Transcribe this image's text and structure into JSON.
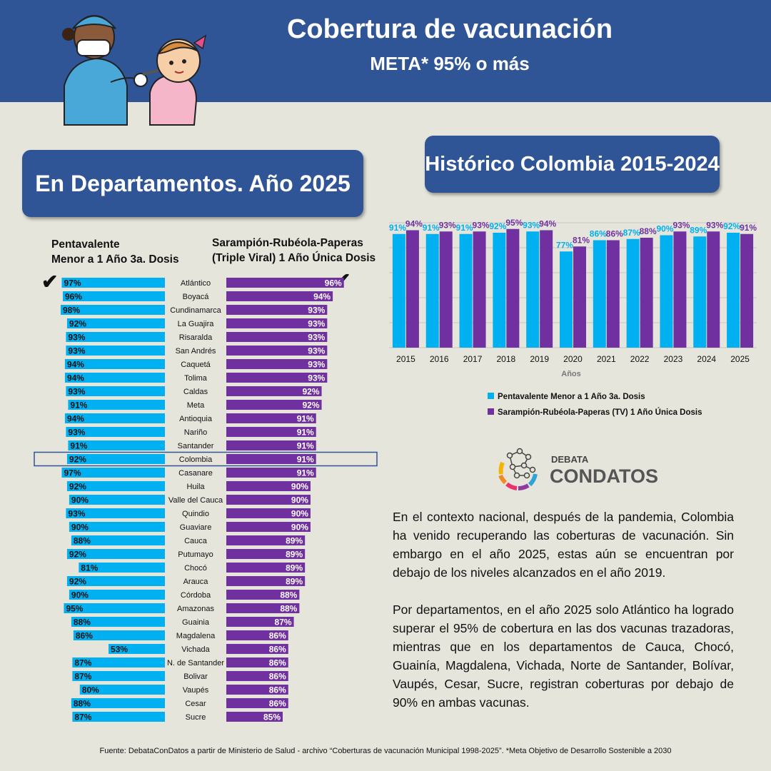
{
  "header": {
    "title": "Cobertura de vacunación",
    "subtitle": "META* 95% o más"
  },
  "left_panel": {
    "title": "En Departamentos. Año 2025",
    "col_penta": [
      "Pentavalente",
      "Menor a 1 Año 3a. Dosis"
    ],
    "col_triple": [
      "Sarampión-Rubéola-Paperas",
      "(Triple Viral) 1 Año Única Dosis"
    ],
    "check_mark": "✔",
    "highlight": "Colombia"
  },
  "right_panel": {
    "title": "Histórico Colombia 2015-2024"
  },
  "colors": {
    "penta": "#00b0f0",
    "triple": "#7030a0",
    "header": "#2f5597",
    "background": "#e5e5dc"
  },
  "chart_data": [
    {
      "type": "bar",
      "orientation": "horizontal-diverging",
      "categories": [
        "Atlántico",
        "Boyacá",
        "Cundinamarca",
        "La Guajira",
        "Risaralda",
        "San Andrés",
        "Caquetá",
        "Tolima",
        "Caldas",
        "Meta",
        "Antioquia",
        "Nariño",
        "Santander",
        "Colombia",
        "Casanare",
        "Huila",
        "Valle  del Cauca",
        "Quindio",
        "Guaviare",
        "Cauca",
        "Putumayo",
        "Chocó",
        "Arauca",
        "Córdoba",
        "Amazonas",
        "Guainia",
        "Magdalena",
        "Vichada",
        "N. de Santander",
        "Bolivar",
        "Vaupés",
        "Cesar",
        "Sucre"
      ],
      "series": [
        {
          "name": "Pentavalente Menor a 1 Año 3a. Dosis",
          "values": [
            97,
            96,
            98,
            92,
            93,
            93,
            94,
            94,
            93,
            91,
            94,
            93,
            91,
            92,
            97,
            92,
            90,
            93,
            90,
            88,
            92,
            81,
            92,
            90,
            95,
            88,
            86,
            53,
            87,
            87,
            80,
            88,
            87
          ]
        },
        {
          "name": "Sarampión-Rubéola-Paperas (Triple Viral) 1 Año Única Dosis",
          "values": [
            96,
            94,
            93,
            93,
            93,
            93,
            93,
            93,
            92,
            92,
            91,
            91,
            91,
            91,
            91,
            90,
            90,
            90,
            90,
            89,
            89,
            89,
            89,
            88,
            88,
            87,
            86,
            86,
            86,
            86,
            86,
            86,
            85
          ]
        }
      ],
      "value_suffix": "%"
    },
    {
      "type": "bar",
      "categories": [
        "2015",
        "2016",
        "2017",
        "2018",
        "2019",
        "2020",
        "2021",
        "2022",
        "2023",
        "2024",
        "2025"
      ],
      "series": [
        {
          "name": "Pentavalente Menor a 1 Año 3a. Dosis",
          "values": [
            91,
            91,
            91,
            92,
            93,
            77,
            86,
            87,
            90,
            89,
            92
          ]
        },
        {
          "name": "Sarampión-Rubéola-Paperas (TV) 1 Año Única Dosis",
          "values": [
            94,
            93,
            93,
            95,
            94,
            81,
            86,
            88,
            93,
            93,
            91
          ]
        }
      ],
      "xlabel": "Años",
      "ylabel": "",
      "ylim": [
        0,
        100
      ],
      "grid": true,
      "legend": "bottom",
      "value_suffix": "%"
    }
  ],
  "logo": {
    "line1": "DEBATA",
    "line2": "CONDATOS"
  },
  "text": {
    "para1": "En el contexto nacional, después de la pandemia, Colombia ha venido recuperando las coberturas de vacunación. Sin embargo en el año 2025, estas aún se encuentran por debajo de los niveles alcanzados en el año 2019.",
    "para2": "Por departamentos, en el año 2025 solo Atlántico ha logrado superar el 95% de cobertura en las dos vacunas trazadoras, mientras que en los departamentos de Cauca, Chocó, Guainía, Magdalena, Vichada, Norte de Santander, Bolívar, Vaupés, Cesar, Sucre, registran coberturas por debajo de 90% en ambas vacunas."
  },
  "footer": "Fuente: DebataConDatos a partir de Ministerio de Salud - archivo “Coberturas de vacunación Municipal 1998-2025”. *Meta Objetivo de Desarrollo Sostenible a 2030"
}
